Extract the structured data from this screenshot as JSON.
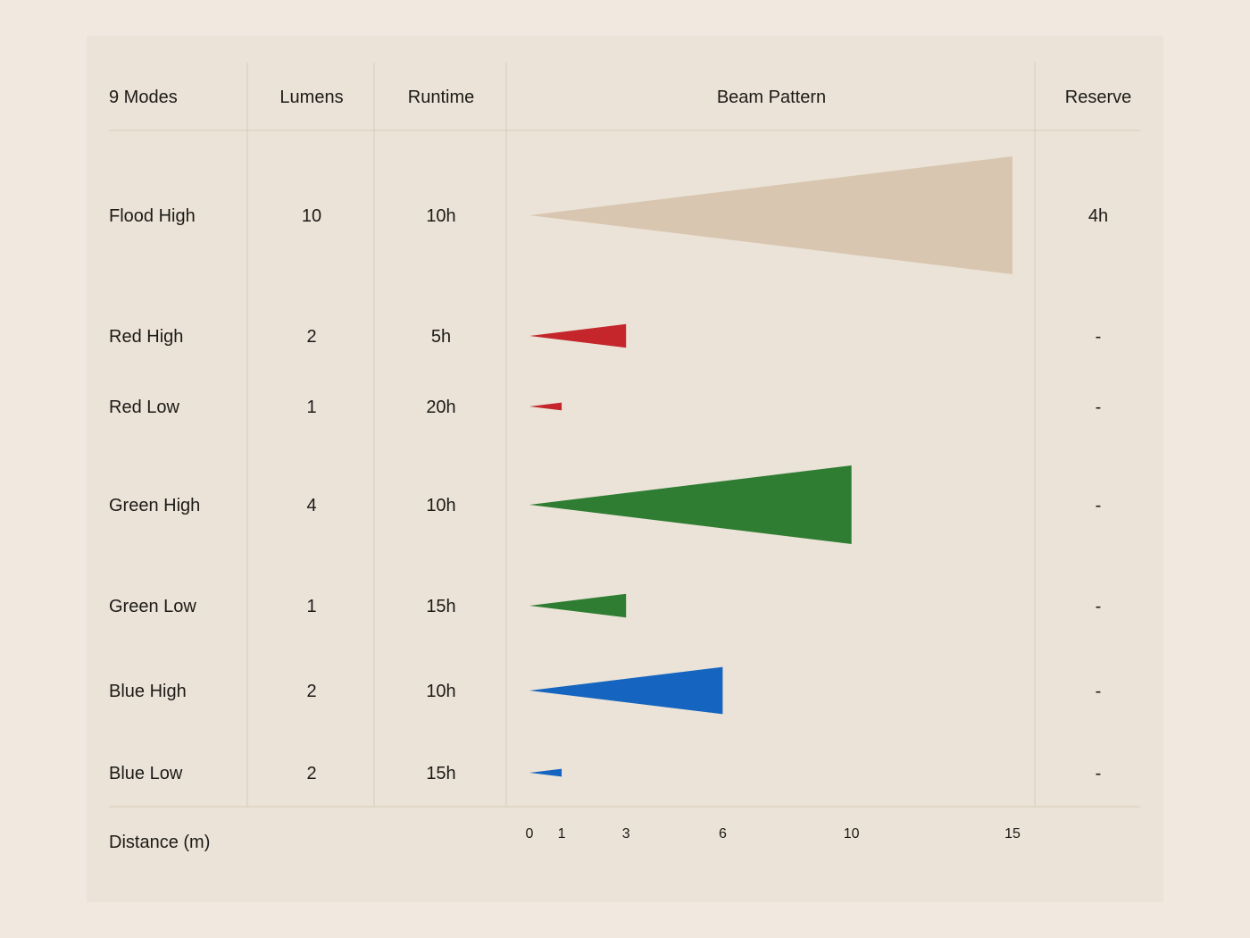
{
  "chart_data": {
    "type": "table",
    "columns": [
      "9 Modes",
      "Lumens",
      "Runtime",
      "Beam Pattern",
      "Reserve"
    ],
    "rows": [
      {
        "mode": "Flood High",
        "lumens": "10",
        "runtime": "10h",
        "beam_distance": 15,
        "reserve": "4h",
        "color": "#d8c6b0"
      },
      {
        "mode": "Red High",
        "lumens": "2",
        "runtime": "5h",
        "beam_distance": 3,
        "reserve": "-",
        "color": "#c4262b"
      },
      {
        "mode": "Red Low",
        "lumens": "1",
        "runtime": "20h",
        "beam_distance": 1,
        "reserve": "-",
        "color": "#c4262b"
      },
      {
        "mode": "Green High",
        "lumens": "4",
        "runtime": "10h",
        "beam_distance": 10,
        "reserve": "-",
        "color": "#2e7d32"
      },
      {
        "mode": "Green Low",
        "lumens": "1",
        "runtime": "15h",
        "beam_distance": 3,
        "reserve": "-",
        "color": "#2e7d32"
      },
      {
        "mode": "Blue High",
        "lumens": "2",
        "runtime": "10h",
        "beam_distance": 6,
        "reserve": "-",
        "color": "#1565c0"
      },
      {
        "mode": "Blue Low",
        "lumens": "2",
        "runtime": "15h",
        "beam_distance": 1,
        "reserve": "-",
        "color": "#1565c0"
      }
    ],
    "footer_label": "Distance (m)",
    "x_ticks": [
      0,
      1,
      3,
      6,
      10,
      15
    ],
    "x_range": [
      0,
      15
    ]
  }
}
